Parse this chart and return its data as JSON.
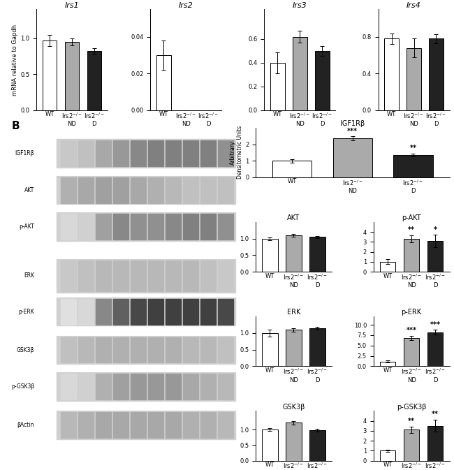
{
  "panel_A": {
    "charts": [
      {
        "title": "Irs1",
        "ylabel": "mRNA relative to Gapdh",
        "ylim": [
          0,
          1.4
        ],
        "yticks": [
          0,
          0.5,
          1.0
        ],
        "bars": [
          {
            "label": "WT",
            "value": 0.97,
            "err": 0.08,
            "color": "white"
          },
          {
            "label": "Irs2$^{-/-}$\nND",
            "value": 0.95,
            "err": 0.05,
            "color": "#aaaaaa"
          },
          {
            "label": "Irs2$^{-/-}$\nD",
            "value": 0.82,
            "err": 0.04,
            "color": "#222222"
          }
        ]
      },
      {
        "title": "Irs2",
        "ylabel": "",
        "ylim": [
          0,
          0.055
        ],
        "yticks": [
          0,
          0.02,
          0.04
        ],
        "bars": [
          {
            "label": "WT",
            "value": 0.03,
            "err": 0.008,
            "color": "white"
          },
          {
            "label": "Irs2$^{-/-}$\nND",
            "value": 0.0,
            "err": 0.0,
            "color": "#aaaaaa"
          },
          {
            "label": "Irs2$^{-/-}$\nD",
            "value": 0.0,
            "err": 0.0,
            "color": "#222222"
          }
        ]
      },
      {
        "title": "Irs3",
        "ylabel": "",
        "ylim": [
          0,
          0.85
        ],
        "yticks": [
          0,
          0.2,
          0.4,
          0.6
        ],
        "bars": [
          {
            "label": "WT",
            "value": 0.4,
            "err": 0.09,
            "color": "white"
          },
          {
            "label": "Irs2$^{-/-}$\nND",
            "value": 0.62,
            "err": 0.05,
            "color": "#aaaaaa"
          },
          {
            "label": "Irs2$^{-/-}$\nD",
            "value": 0.5,
            "err": 0.04,
            "color": "#222222"
          }
        ]
      },
      {
        "title": "Irs4",
        "ylabel": "",
        "ylim": [
          0,
          1.1
        ],
        "yticks": [
          0,
          0.4,
          0.8
        ],
        "bars": [
          {
            "label": "WT",
            "value": 0.78,
            "err": 0.06,
            "color": "white"
          },
          {
            "label": "Irs2$^{-/-}$\nND",
            "value": 0.68,
            "err": 0.1,
            "color": "#aaaaaa"
          },
          {
            "label": "Irs2$^{-/-}$\nD",
            "value": 0.78,
            "err": 0.05,
            "color": "#222222"
          }
        ]
      }
    ]
  },
  "panel_B_bars": {
    "charts": [
      {
        "title": "IGF1Rβ",
        "ylabel": "Arbitrary\nDensitometric Units",
        "ylim": [
          0,
          3.0
        ],
        "yticks": [
          0,
          1,
          2
        ],
        "wide": true,
        "bars": [
          {
            "label": "WT",
            "value": 1.0,
            "err": 0.1,
            "color": "white",
            "sig": ""
          },
          {
            "label": "Irs2$^{-/-}$\nND",
            "value": 2.35,
            "err": 0.12,
            "color": "#aaaaaa",
            "sig": "***"
          },
          {
            "label": "Irs2$^{-/-}$\nD",
            "value": 1.35,
            "err": 0.1,
            "color": "#222222",
            "sig": "**"
          }
        ]
      },
      {
        "title": "AKT",
        "ylabel": "",
        "ylim": [
          0,
          1.5
        ],
        "yticks": [
          0,
          0.5,
          1.0
        ],
        "bars": [
          {
            "label": "WT",
            "value": 1.0,
            "err": 0.04,
            "color": "white",
            "sig": ""
          },
          {
            "label": "Irs2$^{-/-}$\nND",
            "value": 1.1,
            "err": 0.05,
            "color": "#aaaaaa",
            "sig": ""
          },
          {
            "label": "Irs2$^{-/-}$\nD",
            "value": 1.05,
            "err": 0.03,
            "color": "#222222",
            "sig": ""
          }
        ]
      },
      {
        "title": "p-AKT",
        "ylabel": "",
        "ylim": [
          0,
          5.0
        ],
        "yticks": [
          0,
          1,
          2,
          3,
          4
        ],
        "bars": [
          {
            "label": "WT",
            "value": 1.0,
            "err": 0.25,
            "color": "white",
            "sig": ""
          },
          {
            "label": "Irs2$^{-/-}$\nND",
            "value": 3.3,
            "err": 0.35,
            "color": "#aaaaaa",
            "sig": "**"
          },
          {
            "label": "Irs2$^{-/-}$\nD",
            "value": 3.1,
            "err": 0.6,
            "color": "#222222",
            "sig": "*"
          }
        ]
      },
      {
        "title": "ERK",
        "ylabel": "",
        "ylim": [
          0,
          1.5
        ],
        "yticks": [
          0,
          0.5,
          1.0
        ],
        "bars": [
          {
            "label": "WT",
            "value": 1.0,
            "err": 0.1,
            "color": "white",
            "sig": ""
          },
          {
            "label": "Irs2$^{-/-}$\nND",
            "value": 1.1,
            "err": 0.05,
            "color": "#aaaaaa",
            "sig": ""
          },
          {
            "label": "Irs2$^{-/-}$\nD",
            "value": 1.15,
            "err": 0.04,
            "color": "#222222",
            "sig": ""
          }
        ]
      },
      {
        "title": "p-ERK",
        "ylabel": "",
        "ylim": [
          0,
          12.0
        ],
        "yticks": [
          0,
          2.5,
          5.0,
          7.5,
          10.0
        ],
        "bars": [
          {
            "label": "WT",
            "value": 1.1,
            "err": 0.25,
            "color": "white",
            "sig": ""
          },
          {
            "label": "Irs2$^{-/-}$\nND",
            "value": 6.8,
            "err": 0.55,
            "color": "#aaaaaa",
            "sig": "***"
          },
          {
            "label": "Irs2$^{-/-}$\nD",
            "value": 8.2,
            "err": 0.55,
            "color": "#222222",
            "sig": "***"
          }
        ]
      },
      {
        "title": "GSK3β",
        "ylabel": "",
        "ylim": [
          0,
          1.6
        ],
        "yticks": [
          0,
          0.5,
          1.0
        ],
        "bars": [
          {
            "label": "WT",
            "value": 1.0,
            "err": 0.05,
            "color": "white",
            "sig": ""
          },
          {
            "label": "Irs2$^{-/-}$\nND",
            "value": 1.22,
            "err": 0.06,
            "color": "#aaaaaa",
            "sig": ""
          },
          {
            "label": "Irs2$^{-/-}$\nD",
            "value": 0.98,
            "err": 0.04,
            "color": "#222222",
            "sig": ""
          }
        ]
      },
      {
        "title": "p-GSK3β",
        "ylabel": "",
        "ylim": [
          0,
          5.0
        ],
        "yticks": [
          0,
          1,
          2,
          3,
          4
        ],
        "bars": [
          {
            "label": "WT",
            "value": 1.0,
            "err": 0.1,
            "color": "white",
            "sig": ""
          },
          {
            "label": "Irs2$^{-/-}$\nND",
            "value": 3.1,
            "err": 0.3,
            "color": "#aaaaaa",
            "sig": "**"
          },
          {
            "label": "Irs2$^{-/-}$\nD",
            "value": 3.5,
            "err": 0.6,
            "color": "#222222",
            "sig": "**"
          }
        ]
      }
    ]
  },
  "wb_labels": [
    "IGF1Rβ",
    "AKT",
    "p-AKT",
    "ERK",
    "p-ERK",
    "GSK3β",
    "p-GSK3β",
    "βActin"
  ],
  "background": "white",
  "fontsize_title": 7,
  "fontsize_tick": 6,
  "fontsize_label": 6,
  "fontsize_sig": 7,
  "wb_band_tops": [
    0.965,
    0.855,
    0.745,
    0.605,
    0.49,
    0.375,
    0.265,
    0.15
  ],
  "wb_band_heights": [
    0.085,
    0.085,
    0.085,
    0.1,
    0.085,
    0.085,
    0.085,
    0.085
  ],
  "wb_band_colors": [
    [
      "#c8c8c8",
      "#c0c0c0",
      "#a8a8a8",
      "#989898",
      "#888888",
      "#808080",
      "#808080",
      "#808080",
      "#808080",
      "#909090"
    ],
    [
      "#b0b0b0",
      "#a8a8a8",
      "#a0a0a0",
      "#a0a0a0",
      "#a8a8a8",
      "#b0b0b0",
      "#b8b8b8",
      "#c0c0c0",
      "#c0c0c0",
      "#c0c0c0"
    ],
    [
      "#d8d8d8",
      "#d0d0d0",
      "#a0a0a0",
      "#888888",
      "#909090",
      "#909090",
      "#888888",
      "#808080",
      "#808080",
      "#909090"
    ],
    [
      "#c8c8c8",
      "#c0c0c0",
      "#b8b8b8",
      "#b8b8b8",
      "#b8b8b8",
      "#b8b8b8",
      "#b8b8b8",
      "#b8b8b8",
      "#c0c0c0",
      "#c8c8c8"
    ],
    [
      "#e0e0e0",
      "#d8d8d8",
      "#888888",
      "#606060",
      "#484848",
      "#404040",
      "#404040",
      "#404040",
      "#404040",
      "#484848"
    ],
    [
      "#c0c0c0",
      "#b8b8b8",
      "#b0b0b0",
      "#b0b0b0",
      "#b0b0b0",
      "#b0b0b0",
      "#b0b0b0",
      "#b8b8b8",
      "#b8b8b8",
      "#c0c0c0"
    ],
    [
      "#d8d8d8",
      "#d0d0d0",
      "#b0b0b0",
      "#a0a0a0",
      "#989898",
      "#989898",
      "#989898",
      "#a8a8a8",
      "#b0b0b0",
      "#b8b8b8"
    ],
    [
      "#b8b8b8",
      "#b0b0b0",
      "#a8a8a8",
      "#a8a8a8",
      "#a8a8a8",
      "#a8a8a8",
      "#a8a8a8",
      "#b0b0b0",
      "#b0b0b0",
      "#b8b8b8"
    ]
  ]
}
